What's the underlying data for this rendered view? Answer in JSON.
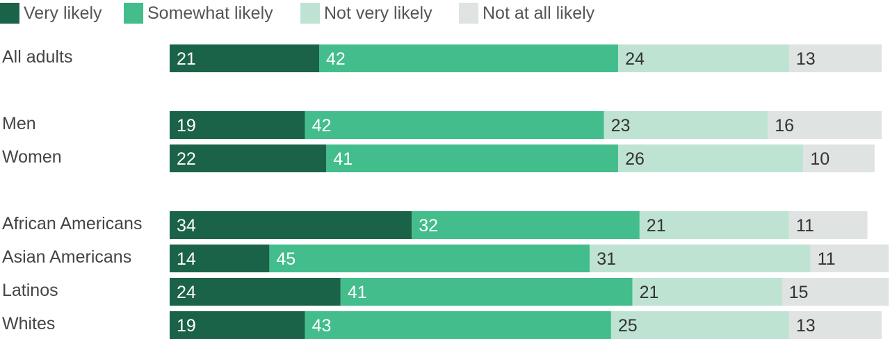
{
  "legend": [
    {
      "label": "Very likely",
      "color": "#1b6348"
    },
    {
      "label": "Somewhat likely",
      "color": "#43bd8c"
    },
    {
      "label": "Not very likely",
      "color": "#bfe3d3"
    },
    {
      "label": "Not at all likely",
      "color": "#dfe3e1"
    }
  ],
  "chart_data": {
    "type": "bar",
    "orientation": "horizontal",
    "stacked": true,
    "categories": [
      "All adults",
      "Men",
      "Women",
      "African Americans",
      "Asian Americans",
      "Latinos",
      "Whites"
    ],
    "series": [
      {
        "name": "Very likely",
        "color": "#1b6348",
        "label_color": "#ffffff",
        "values": [
          21,
          19,
          22,
          34,
          14,
          24,
          19
        ]
      },
      {
        "name": "Somewhat likely",
        "color": "#43bd8c",
        "label_color": "#ffffff",
        "values": [
          42,
          42,
          41,
          32,
          45,
          41,
          43
        ]
      },
      {
        "name": "Not very likely",
        "color": "#bfe3d3",
        "label_color": "#333333",
        "values": [
          24,
          23,
          26,
          21,
          31,
          21,
          25
        ]
      },
      {
        "name": "Not at all likely",
        "color": "#dfe3e1",
        "label_color": "#333333",
        "values": [
          13,
          16,
          10,
          11,
          11,
          15,
          13
        ]
      }
    ],
    "xlim": [
      0,
      100
    ],
    "grid": false,
    "legend_position": "top-left"
  }
}
